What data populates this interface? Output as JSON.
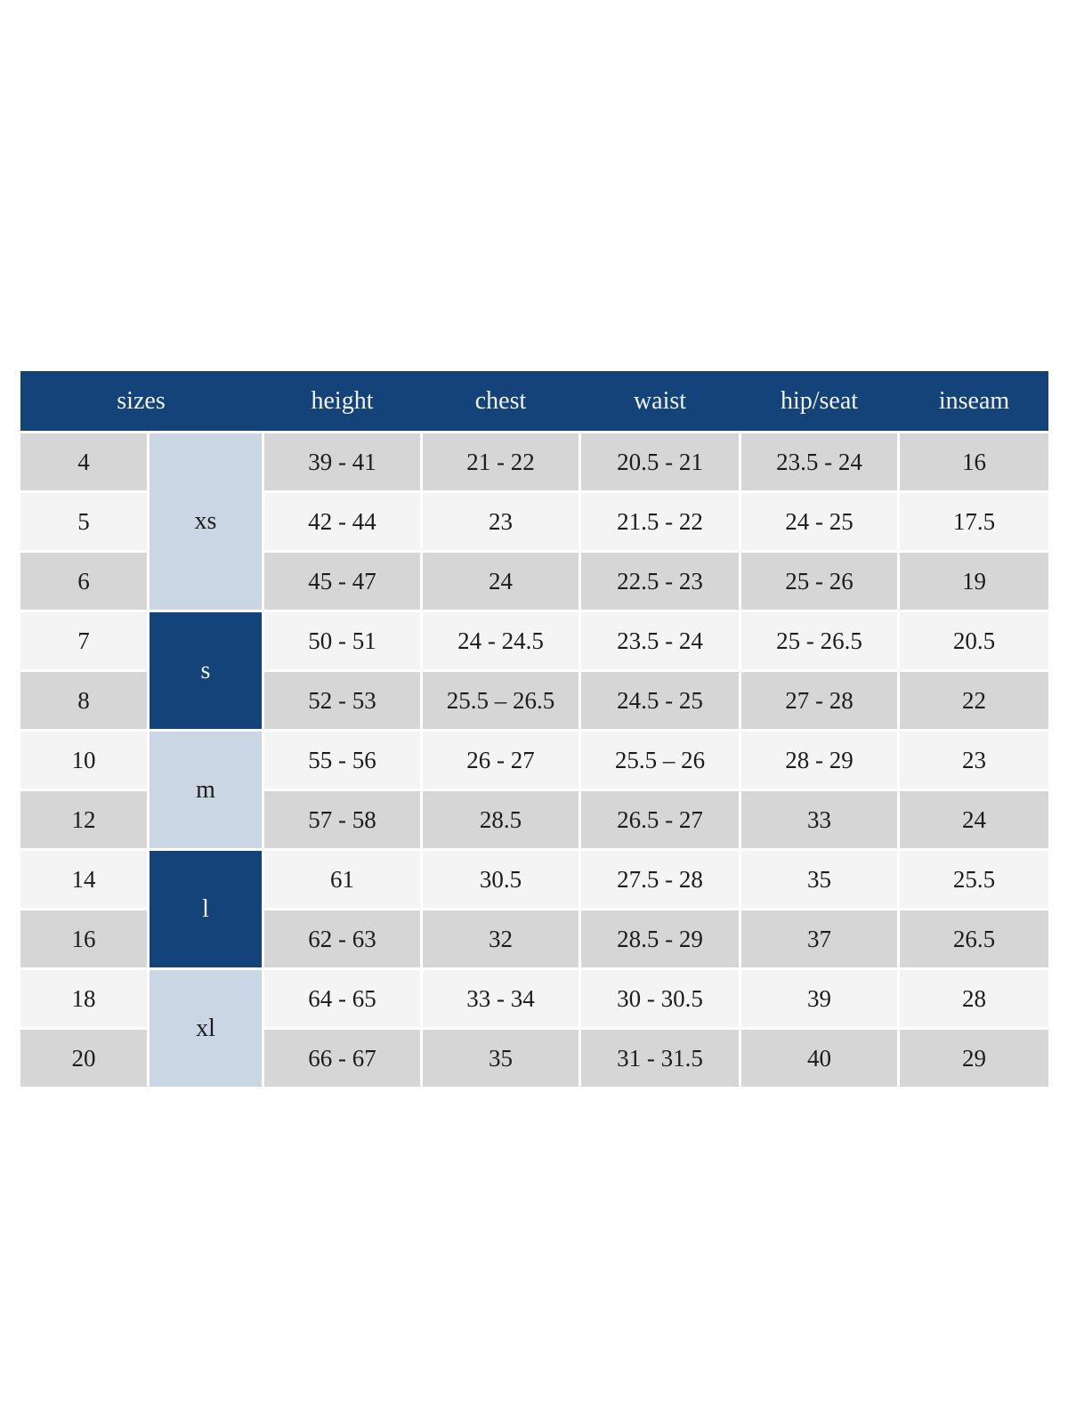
{
  "page": {
    "background": "#ffffff"
  },
  "table": {
    "colors": {
      "header_bg": "#134379",
      "header_text": "#f2f2f0",
      "group_light_bg": "#cbd6e5",
      "group_light_text": "#1c1c1c",
      "group_dark_bg": "#134379",
      "group_dark_text": "#f5f5f5",
      "row_gray_bg": "#d6d6d6",
      "row_light_bg": "#f4f4f4",
      "cell_text": "#1c1c1c"
    },
    "headers": [
      "sizes",
      "height",
      "chest",
      "waist",
      "hip/seat",
      "inseam"
    ],
    "groups": [
      {
        "label": "xs",
        "rows": 3,
        "variant": "light"
      },
      {
        "label": "s",
        "rows": 2,
        "variant": "dark"
      },
      {
        "label": "m",
        "rows": 2,
        "variant": "light"
      },
      {
        "label": "l",
        "rows": 2,
        "variant": "dark"
      },
      {
        "label": "xl",
        "rows": 2,
        "variant": "light"
      }
    ],
    "rows": [
      {
        "size": "4",
        "group_index": 0,
        "shade": "gray",
        "height": "39 - 41",
        "chest": "21 - 22",
        "waist": "20.5 - 21",
        "hip": "23.5 - 24",
        "inseam": "16"
      },
      {
        "size": "5",
        "shade": "light",
        "height": "42 - 44",
        "chest": "23",
        "waist": "21.5 - 22",
        "hip": "24 - 25",
        "inseam": "17.5"
      },
      {
        "size": "6",
        "shade": "gray",
        "height": "45 - 47",
        "chest": "24",
        "waist": "22.5 - 23",
        "hip": "25 - 26",
        "inseam": "19"
      },
      {
        "size": "7",
        "group_index": 1,
        "shade": "light",
        "height": "50 - 51",
        "chest": "24 - 24.5",
        "waist": "23.5 - 24",
        "hip": "25 - 26.5",
        "inseam": "20.5"
      },
      {
        "size": "8",
        "shade": "gray",
        "height": "52 - 53",
        "chest": "25.5 – 26.5",
        "waist": "24.5 - 25",
        "hip": "27 - 28",
        "inseam": "22"
      },
      {
        "size": "10",
        "group_index": 2,
        "shade": "light",
        "height": "55 - 56",
        "chest": "26 - 27",
        "waist": "25.5 – 26",
        "hip": "28 - 29",
        "inseam": "23"
      },
      {
        "size": "12",
        "shade": "gray",
        "height": "57 - 58",
        "chest": "28.5",
        "waist": "26.5 - 27",
        "hip": "33",
        "inseam": "24"
      },
      {
        "size": "14",
        "group_index": 3,
        "shade": "light",
        "height": "61",
        "chest": "30.5",
        "waist": "27.5 - 28",
        "hip": "35",
        "inseam": "25.5"
      },
      {
        "size": "16",
        "shade": "gray",
        "height": "62 - 63",
        "chest": "32",
        "waist": "28.5 - 29",
        "hip": "37",
        "inseam": "26.5"
      },
      {
        "size": "18",
        "group_index": 4,
        "shade": "light",
        "height": "64 - 65",
        "chest": "33 - 34",
        "waist": "30 - 30.5",
        "hip": "39",
        "inseam": "28"
      },
      {
        "size": "20",
        "shade": "gray",
        "height": "66 - 67",
        "chest": "35",
        "waist": "31 - 31.5",
        "hip": "40",
        "inseam": "29"
      }
    ]
  }
}
